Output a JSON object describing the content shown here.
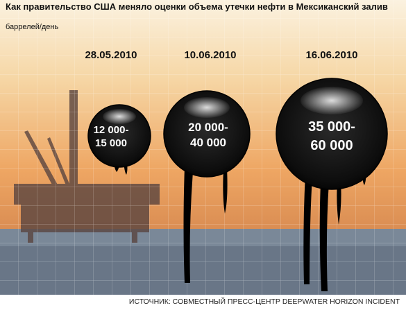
{
  "header": {
    "title": "Как правительство США меняло оценки объема утечки нефти в Мексиканский залив",
    "subtitle": "баррелей/день"
  },
  "estimates": [
    {
      "date": "28.05.2010",
      "line1": "12 000-",
      "line2": "15 000"
    },
    {
      "date": "10.06.2010",
      "line1": "20 000-",
      "line2": "40 000"
    },
    {
      "date": "16.06.2010",
      "line1": "35 000-",
      "line2": "60 000"
    }
  ],
  "source": "ИСТОЧНИК: СОВМЕСТНЫЙ ПРЕСС-ЦЕНТР DEEPWATER HORIZON INCIDENT"
}
